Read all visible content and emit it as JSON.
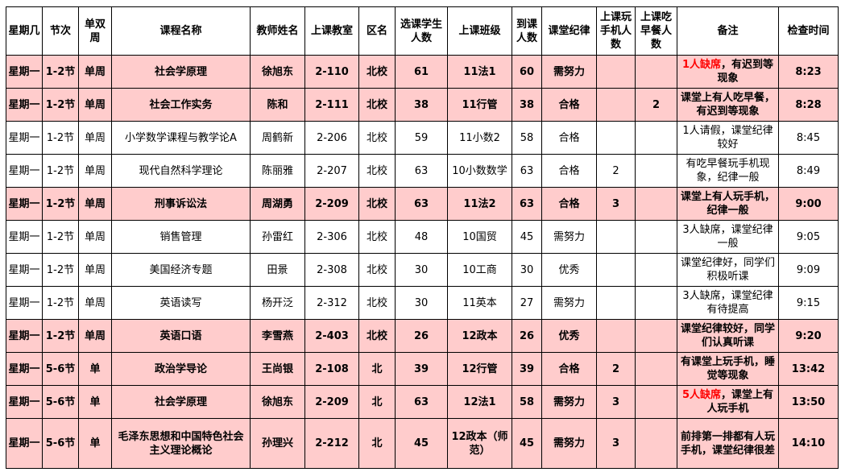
{
  "headers": [
    "星期几",
    "节次",
    "单双周",
    "课程名称",
    "教师姓名",
    "上课教室",
    "区名",
    "选课学生人数",
    "上课班级",
    "到课人数",
    "课堂纪律",
    "上课玩手机人数",
    "上课吃早餐人数",
    "备注",
    "检查时间"
  ],
  "colors": {
    "highlight_row": "#ffcccc",
    "red_text": "#ff0000"
  },
  "rows": [
    {
      "highlight": true,
      "day": "星期一",
      "period": "1-2节",
      "week": "单周",
      "course": "社会学原理",
      "teacher": "徐旭东",
      "room": "2-110",
      "campus": "北校",
      "enrolled": "61",
      "class": "11法1",
      "present": "60",
      "discipline": "需努力",
      "phone": "",
      "breakfast": "",
      "remark_red": "1人缺席",
      "remark": "，有迟到等现象",
      "time": "8:23"
    },
    {
      "highlight": true,
      "day": "星期一",
      "period": "1-2节",
      "week": "单周",
      "course": "社会工作实务",
      "teacher": "陈和",
      "room": "2-111",
      "campus": "北校",
      "enrolled": "38",
      "class": "11行管",
      "present": "38",
      "discipline": "合格",
      "phone": "",
      "breakfast": "2",
      "remark_red": "",
      "remark": "课堂上有人吃早餐，有迟到等现象",
      "time": "8:28"
    },
    {
      "highlight": false,
      "day": "星期一",
      "period": "1-2节",
      "week": "单周",
      "course": "小学数学课程与教学论A",
      "teacher": "周鹤新",
      "room": "2-206",
      "campus": "北校",
      "enrolled": "59",
      "class": "11小数2",
      "present": "58",
      "discipline": "合格",
      "phone": "",
      "breakfast": "",
      "remark_red": "",
      "remark": "1人请假，课堂纪律较好",
      "time": "8:45"
    },
    {
      "highlight": false,
      "day": "星期一",
      "period": "1-2节",
      "week": "单周",
      "course": "现代自然科学理论",
      "teacher": "陈丽雅",
      "room": "2-207",
      "campus": "北校",
      "enrolled": "63",
      "class": "10小数数学",
      "present": "63",
      "discipline": "合格",
      "phone": "2",
      "breakfast": "",
      "remark_red": "",
      "remark": "有吃早餐玩手机现象，纪律一般",
      "time": "8:49"
    },
    {
      "highlight": true,
      "day": "星期一",
      "period": "1-2节",
      "week": "单周",
      "course": "刑事诉讼法",
      "teacher": "周湖勇",
      "room": "2-209",
      "campus": "北校",
      "enrolled": "63",
      "class": "11法2",
      "present": "63",
      "discipline": "合格",
      "phone": "3",
      "breakfast": "",
      "remark_red": "",
      "remark": "课堂上有人玩手机，纪律一般",
      "time": "9:00"
    },
    {
      "highlight": false,
      "day": "星期一",
      "period": "1-2节",
      "week": "单周",
      "course": "销售管理",
      "teacher": "孙雷红",
      "room": "2-306",
      "campus": "北校",
      "enrolled": "48",
      "class": "10国贸",
      "present": "45",
      "discipline": "需努力",
      "phone": "",
      "breakfast": "",
      "remark_red": "",
      "remark": "3人缺席，课堂纪律一般",
      "time": "9:05"
    },
    {
      "highlight": false,
      "day": "星期一",
      "period": "1-2节",
      "week": "单周",
      "course": "美国经济专题",
      "teacher": "田景",
      "room": "2-308",
      "campus": "北校",
      "enrolled": "30",
      "class": "10工商",
      "present": "30",
      "discipline": "优秀",
      "phone": "",
      "breakfast": "",
      "remark_red": "",
      "remark": "课堂纪律好，同学们积极听课",
      "time": "9:09"
    },
    {
      "highlight": false,
      "day": "星期一",
      "period": "1-2节",
      "week": "单周",
      "course": "英语读写",
      "teacher": "杨开泛",
      "room": "2-312",
      "campus": "北校",
      "enrolled": "30",
      "class": "11英本",
      "present": "27",
      "discipline": "需努力",
      "phone": "",
      "breakfast": "",
      "remark_red": "",
      "remark": "3人缺席，课堂纪律有待提高",
      "time": "9:15"
    },
    {
      "highlight": true,
      "day": "星期一",
      "period": "1-2节",
      "week": "单周",
      "course": "英语口语",
      "teacher": "李雪燕",
      "room": "2-403",
      "campus": "北校",
      "enrolled": "26",
      "class": "12政本",
      "present": "26",
      "discipline": "优秀",
      "phone": "",
      "breakfast": "",
      "remark_red": "",
      "remark": "课堂纪律较好，同学们认真听课",
      "time": "9:20"
    },
    {
      "highlight": true,
      "day": "星期一",
      "period": "5-6节",
      "week": "单",
      "course": "政治学导论",
      "teacher": "王尚银",
      "room": "2-108",
      "campus": "北",
      "enrolled": "39",
      "class": "12行管",
      "present": "39",
      "discipline": "合格",
      "phone": "2",
      "breakfast": "",
      "remark_red": "",
      "remark": "有课堂上玩手机，睡觉等现象",
      "time": "13:42"
    },
    {
      "highlight": true,
      "day": "星期一",
      "period": "5-6节",
      "week": "单",
      "course": "社会学原理",
      "teacher": "徐旭东",
      "room": "2-209",
      "campus": "北",
      "enrolled": "63",
      "class": "12法1",
      "present": "58",
      "discipline": "需努力",
      "phone": "3",
      "breakfast": "",
      "remark_red": "5人缺席",
      "remark": "，课堂上有人玩手机",
      "time": "13:50"
    },
    {
      "highlight": true,
      "day": "星期一",
      "period": "5-6节",
      "week": "单",
      "course": "毛泽东思想和中国特色社会主义理论概论",
      "teacher": "孙理兴",
      "room": "2-212",
      "campus": "北",
      "enrolled": "45",
      "class": "12政本（师范）",
      "present": "45",
      "discipline": "需努力",
      "phone": "3",
      "breakfast": "",
      "remark_red": "",
      "remark": "前排第一排都有人玩手机，课堂纪律很差",
      "time": "14:10"
    }
  ]
}
